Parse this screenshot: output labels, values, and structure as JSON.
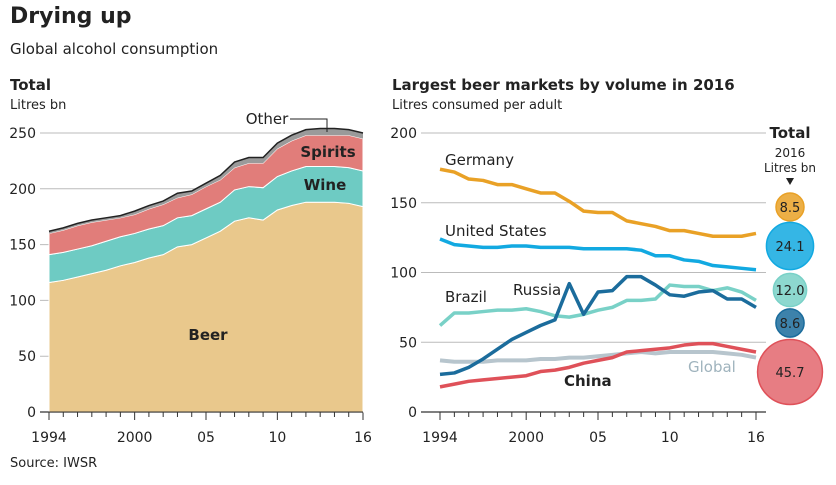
{
  "header": {
    "title": "Drying up",
    "subtitle": "Global alcohol consumption"
  },
  "source": "Source: IWSR",
  "chart_data": [
    {
      "type": "area",
      "stacked": true,
      "title": "Total",
      "ylabel": "Litres bn",
      "ylim": [
        0,
        250
      ],
      "yticks": [
        0,
        50,
        100,
        150,
        200,
        250
      ],
      "x": [
        1994,
        1995,
        1996,
        1997,
        1998,
        1999,
        2000,
        2001,
        2002,
        2003,
        2004,
        2005,
        2006,
        2007,
        2008,
        2009,
        2010,
        2011,
        2012,
        2013,
        2014,
        2015,
        2016
      ],
      "xtick_labels": [
        {
          "x": 1994,
          "label": "1994"
        },
        {
          "x": 2000,
          "label": "2000"
        },
        {
          "x": 2005,
          "label": "05"
        },
        {
          "x": 2010,
          "label": "10"
        },
        {
          "x": 2016,
          "label": "16"
        }
      ],
      "grid": true,
      "series": [
        {
          "name": "Beer",
          "color": "#e9c88c",
          "values": [
            116,
            118,
            121,
            124,
            127,
            131,
            134,
            138,
            141,
            148,
            150,
            156,
            162,
            171,
            174,
            172,
            181,
            185,
            188,
            188,
            188,
            187,
            184
          ]
        },
        {
          "name": "Wine",
          "color": "#6ecbc3",
          "values": [
            25,
            25,
            25,
            25,
            26,
            26,
            26,
            26,
            26,
            26,
            26,
            26,
            26,
            28,
            28,
            29,
            30,
            31,
            32,
            32,
            32,
            32,
            32
          ]
        },
        {
          "name": "Spirits",
          "color": "#e17d7a",
          "values": [
            19,
            20,
            21,
            21,
            19,
            17,
            17,
            18,
            19,
            18,
            19,
            20,
            20,
            20,
            21,
            22,
            25,
            27,
            28,
            28,
            28,
            29,
            29
          ]
        },
        {
          "name": "Other",
          "color": "#9a9a9a",
          "values": [
            2,
            2,
            2,
            2,
            2,
            2,
            3,
            3,
            3,
            4,
            3,
            3,
            4,
            5,
            5,
            5,
            5,
            5,
            5,
            6,
            6,
            5,
            5
          ]
        }
      ]
    },
    {
      "type": "line",
      "title": "Largest beer markets by volume in 2016",
      "ylabel": "Litres consumed per adult",
      "ylim": [
        0,
        200
      ],
      "yticks": [
        0,
        50,
        100,
        150,
        200
      ],
      "x": [
        1994,
        1995,
        1996,
        1997,
        1998,
        1999,
        2000,
        2001,
        2002,
        2003,
        2004,
        2005,
        2006,
        2007,
        2008,
        2009,
        2010,
        2011,
        2012,
        2013,
        2014,
        2015,
        2016
      ],
      "xtick_labels": [
        {
          "x": 1994,
          "label": "1994"
        },
        {
          "x": 2000,
          "label": "2000"
        },
        {
          "x": 2005,
          "label": "05"
        },
        {
          "x": 2010,
          "label": "10"
        },
        {
          "x": 2016,
          "label": "16"
        }
      ],
      "grid": true,
      "series": [
        {
          "name": "Global",
          "color": "#b7c5cd",
          "values": [
            37,
            36,
            36,
            36,
            37,
            37,
            37,
            38,
            38,
            39,
            39,
            40,
            41,
            42,
            43,
            42,
            43,
            43,
            43,
            43,
            42,
            41,
            39
          ]
        },
        {
          "name": "Germany",
          "color": "#e9a126",
          "values": [
            174,
            172,
            167,
            166,
            163,
            163,
            160,
            157,
            157,
            151,
            144,
            143,
            143,
            137,
            135,
            133,
            130,
            130,
            128,
            126,
            126,
            126,
            128
          ],
          "total_2016": "8.5"
        },
        {
          "name": "United States",
          "color": "#12a9e1",
          "values": [
            124,
            120,
            119,
            118,
            118,
            119,
            119,
            118,
            118,
            118,
            117,
            117,
            117,
            117,
            116,
            112,
            112,
            109,
            108,
            105,
            104,
            103,
            102
          ],
          "total_2016": "24.1"
        },
        {
          "name": "Brazil",
          "color": "#79d1c7",
          "values": [
            62,
            71,
            71,
            72,
            73,
            73,
            74,
            72,
            69,
            68,
            70,
            73,
            75,
            80,
            80,
            81,
            91,
            90,
            90,
            87,
            89,
            86,
            80
          ],
          "total_2016": "12.0"
        },
        {
          "name": "Russia",
          "color": "#1b6c9c",
          "values": [
            27,
            28,
            32,
            38,
            45,
            52,
            57,
            62,
            66,
            92,
            70,
            86,
            87,
            97,
            97,
            91,
            84,
            83,
            86,
            87,
            81,
            81,
            75
          ],
          "total_2016": "8.6"
        },
        {
          "name": "China",
          "color": "#df5159",
          "values": [
            18,
            20,
            22,
            23,
            24,
            25,
            26,
            29,
            30,
            32,
            35,
            37,
            39,
            43,
            44,
            45,
            46,
            48,
            49,
            49,
            47,
            45,
            43
          ],
          "total_2016": "45.7"
        }
      ],
      "totals_legend": {
        "title": "Total",
        "line1": "2016",
        "line2": "Litres bn"
      }
    }
  ]
}
